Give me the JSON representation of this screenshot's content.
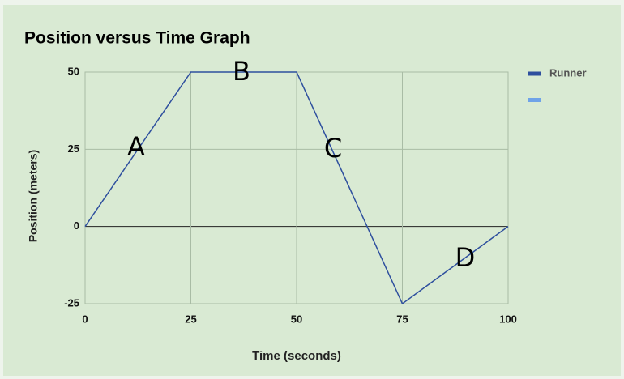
{
  "chart_data": {
    "type": "line",
    "title": "Position versus Time Graph",
    "x_label": "Time (seconds)",
    "y_label": "Position (meters)",
    "x": [
      0,
      25,
      50,
      75,
      100
    ],
    "series": [
      {
        "name": "Runner",
        "color": "#2e4f9e",
        "values": [
          0,
          50,
          50,
          -25,
          0
        ]
      }
    ],
    "xlim": [
      0,
      100
    ],
    "xticks": [
      0,
      25,
      50,
      75,
      100
    ],
    "ylim": [
      -25,
      50
    ],
    "yticks": [
      -25,
      0,
      25,
      50
    ],
    "grid": true,
    "legend": "right",
    "annotations": [
      "A",
      "B",
      "C",
      "D"
    ]
  }
}
